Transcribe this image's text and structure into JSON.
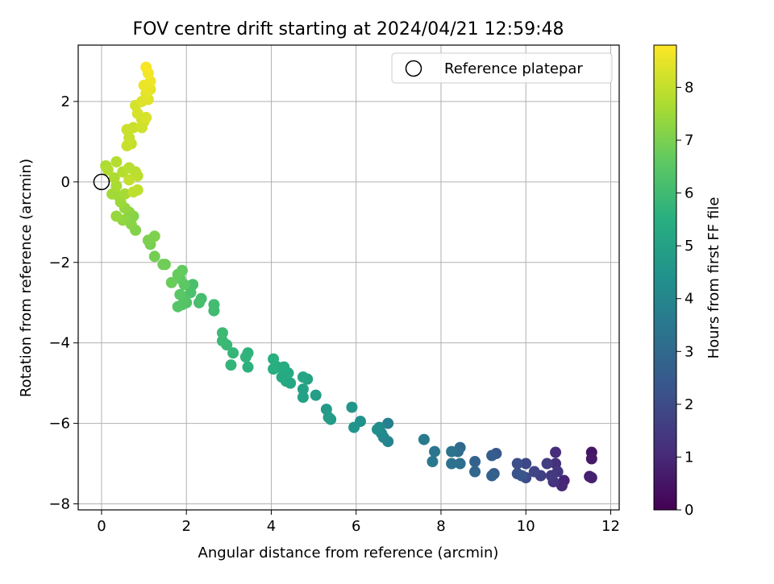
{
  "chart_data": {
    "type": "scatter",
    "title": "FOV centre drift starting at 2024/04/21 12:59:48",
    "xlabel": "Angular distance from reference (arcmin)",
    "ylabel": "Rotation from reference (arcmin)",
    "xlim": [
      -0.55,
      12.2
    ],
    "ylim": [
      -8.15,
      3.4
    ],
    "xticks": [
      0,
      2,
      4,
      6,
      8,
      10,
      12
    ],
    "xtick_labels": [
      "0",
      "2",
      "4",
      "6",
      "8",
      "10",
      "12"
    ],
    "yticks": [
      2,
      0,
      -2,
      -4,
      -6,
      -8
    ],
    "ytick_labels": [
      "2",
      "0",
      "−2",
      "−4",
      "−6",
      "−8"
    ],
    "grid": true,
    "legend": {
      "label": "Reference platepar",
      "position": "top-right"
    },
    "reference_point": {
      "x": 0,
      "y": 0
    },
    "colorbar": {
      "label": "Hours from first FF file",
      "colormap": "viridis",
      "range": [
        0,
        8.8
      ],
      "ticks": [
        0,
        1,
        2,
        3,
        4,
        5,
        6,
        7,
        8
      ],
      "tick_labels": [
        "0",
        "1",
        "2",
        "3",
        "4",
        "5",
        "6",
        "7",
        "8"
      ]
    },
    "points": [
      [
        11.55,
        -6.72,
        0.5
      ],
      [
        11.55,
        -6.88,
        0.6
      ],
      [
        11.5,
        -7.32,
        0.7
      ],
      [
        11.55,
        -7.35,
        0.8
      ],
      [
        10.9,
        -7.42,
        0.9
      ],
      [
        10.85,
        -7.55,
        1.0
      ],
      [
        10.7,
        -6.72,
        1.1
      ],
      [
        10.7,
        -7.0,
        1.2
      ],
      [
        10.65,
        -7.45,
        1.3
      ],
      [
        10.75,
        -7.2,
        1.4
      ],
      [
        10.6,
        -7.3,
        1.5
      ],
      [
        10.5,
        -7.0,
        1.6
      ],
      [
        10.35,
        -7.3,
        1.7
      ],
      [
        10.2,
        -7.2,
        1.8
      ],
      [
        10.0,
        -7.0,
        1.9
      ],
      [
        10.0,
        -7.35,
        2.0
      ],
      [
        9.8,
        -7.0,
        2.1
      ],
      [
        9.8,
        -7.25,
        2.2
      ],
      [
        9.9,
        -7.3,
        2.3
      ],
      [
        9.3,
        -6.75,
        2.4
      ],
      [
        9.25,
        -7.25,
        2.5
      ],
      [
        9.2,
        -6.8,
        2.6
      ],
      [
        9.2,
        -7.3,
        2.7
      ],
      [
        8.8,
        -6.95,
        2.8
      ],
      [
        8.8,
        -7.2,
        2.9
      ],
      [
        8.45,
        -6.6,
        3.0
      ],
      [
        8.4,
        -6.7,
        3.1
      ],
      [
        8.45,
        -7.0,
        3.2
      ],
      [
        8.25,
        -7.0,
        3.3
      ],
      [
        8.25,
        -6.7,
        3.35
      ],
      [
        7.85,
        -6.7,
        3.4
      ],
      [
        7.8,
        -6.95,
        3.5
      ],
      [
        7.6,
        -6.4,
        3.6
      ],
      [
        6.75,
        -6.0,
        3.8
      ],
      [
        6.75,
        -6.45,
        3.9
      ],
      [
        6.65,
        -6.35,
        4.0
      ],
      [
        6.6,
        -6.25,
        4.1
      ],
      [
        6.55,
        -6.1,
        4.2
      ],
      [
        6.5,
        -6.15,
        4.3
      ],
      [
        6.1,
        -5.95,
        4.4
      ],
      [
        5.95,
        -6.1,
        4.5
      ],
      [
        5.9,
        -5.6,
        4.6
      ],
      [
        5.4,
        -5.9,
        4.7
      ],
      [
        5.3,
        -5.65,
        4.75
      ],
      [
        5.35,
        -5.85,
        4.8
      ],
      [
        5.05,
        -5.3,
        4.9
      ],
      [
        4.75,
        -5.35,
        5.0
      ],
      [
        4.75,
        -5.15,
        5.05
      ],
      [
        4.85,
        -4.9,
        5.1
      ],
      [
        4.75,
        -4.85,
        5.15
      ],
      [
        4.45,
        -5.0,
        5.2
      ],
      [
        4.35,
        -4.95,
        5.25
      ],
      [
        4.25,
        -4.85,
        5.3
      ],
      [
        4.4,
        -4.75,
        5.35
      ],
      [
        4.3,
        -4.6,
        5.4
      ],
      [
        4.15,
        -4.6,
        5.45
      ],
      [
        4.05,
        -4.65,
        5.5
      ],
      [
        4.05,
        -4.4,
        5.55
      ],
      [
        3.45,
        -4.6,
        5.6
      ],
      [
        3.45,
        -4.25,
        5.65
      ],
      [
        3.4,
        -4.35,
        5.7
      ],
      [
        3.05,
        -4.55,
        5.75
      ],
      [
        3.1,
        -4.25,
        5.8
      ],
      [
        2.95,
        -4.05,
        5.85
      ],
      [
        2.85,
        -3.95,
        5.9
      ],
      [
        2.85,
        -3.75,
        5.95
      ],
      [
        2.65,
        -3.2,
        6.0
      ],
      [
        2.65,
        -3.05,
        6.05
      ],
      [
        2.35,
        -2.9,
        6.1
      ],
      [
        2.3,
        -3.0,
        6.15
      ],
      [
        2.15,
        -2.55,
        6.2
      ],
      [
        2.1,
        -2.75,
        6.25
      ],
      [
        2.0,
        -3.0,
        6.3
      ],
      [
        1.95,
        -2.9,
        6.35
      ],
      [
        1.9,
        -3.05,
        6.4
      ],
      [
        1.8,
        -3.1,
        6.45
      ],
      [
        1.85,
        -2.8,
        6.5
      ],
      [
        1.95,
        -2.55,
        6.55
      ],
      [
        1.85,
        -2.4,
        6.6
      ],
      [
        1.9,
        -2.2,
        6.65
      ],
      [
        1.8,
        -2.3,
        6.7
      ],
      [
        1.65,
        -2.5,
        6.75
      ],
      [
        1.5,
        -2.05,
        6.8
      ],
      [
        1.45,
        -2.05,
        6.85
      ],
      [
        1.25,
        -1.85,
        6.9
      ],
      [
        1.15,
        -1.55,
        6.95
      ],
      [
        1.1,
        -1.45,
        7.0
      ],
      [
        1.25,
        -1.35,
        7.05
      ],
      [
        0.8,
        -1.2,
        7.1
      ],
      [
        0.75,
        -0.85,
        7.15
      ],
      [
        0.7,
        -1.05,
        7.2
      ],
      [
        0.65,
        -0.75,
        7.25
      ],
      [
        0.5,
        -0.95,
        7.3
      ],
      [
        0.55,
        -0.65,
        7.35
      ],
      [
        0.35,
        -0.85,
        7.4
      ],
      [
        0.45,
        -0.5,
        7.45
      ],
      [
        0.4,
        -0.35,
        7.5
      ],
      [
        0.25,
        -0.3,
        7.55
      ],
      [
        0.55,
        -0.3,
        7.6
      ],
      [
        0.35,
        -0.1,
        7.65
      ],
      [
        0.3,
        0.1,
        7.7
      ],
      [
        0.1,
        0.4,
        7.7
      ],
      [
        0.15,
        0.3,
        7.75
      ],
      [
        0.35,
        0.5,
        7.8
      ],
      [
        0.5,
        0.25,
        7.8
      ],
      [
        0.65,
        0.35,
        7.85
      ],
      [
        0.8,
        0.25,
        7.85
      ],
      [
        0.85,
        0.15,
        7.9
      ],
      [
        0.85,
        -0.2,
        7.95
      ],
      [
        0.75,
        -0.25,
        7.95
      ],
      [
        0.65,
        0.05,
        8.0
      ],
      [
        0.7,
        0.95,
        8.0
      ],
      [
        0.6,
        0.9,
        8.05
      ],
      [
        0.65,
        1.1,
        8.05
      ],
      [
        0.6,
        1.3,
        8.1
      ],
      [
        0.75,
        1.35,
        8.1
      ],
      [
        0.95,
        1.35,
        8.15
      ],
      [
        0.95,
        1.55,
        8.2
      ],
      [
        1.0,
        1.5,
        8.2
      ],
      [
        0.85,
        1.7,
        8.25
      ],
      [
        0.8,
        1.9,
        8.25
      ],
      [
        1.05,
        1.6,
        8.3
      ],
      [
        0.95,
        2.0,
        8.35
      ],
      [
        1.1,
        2.05,
        8.4
      ],
      [
        1.05,
        2.2,
        8.45
      ],
      [
        1.15,
        2.3,
        8.5
      ],
      [
        1.0,
        2.4,
        8.55
      ],
      [
        1.15,
        2.5,
        8.6
      ],
      [
        1.1,
        2.7,
        8.65
      ],
      [
        1.05,
        2.85,
        8.7
      ]
    ]
  }
}
